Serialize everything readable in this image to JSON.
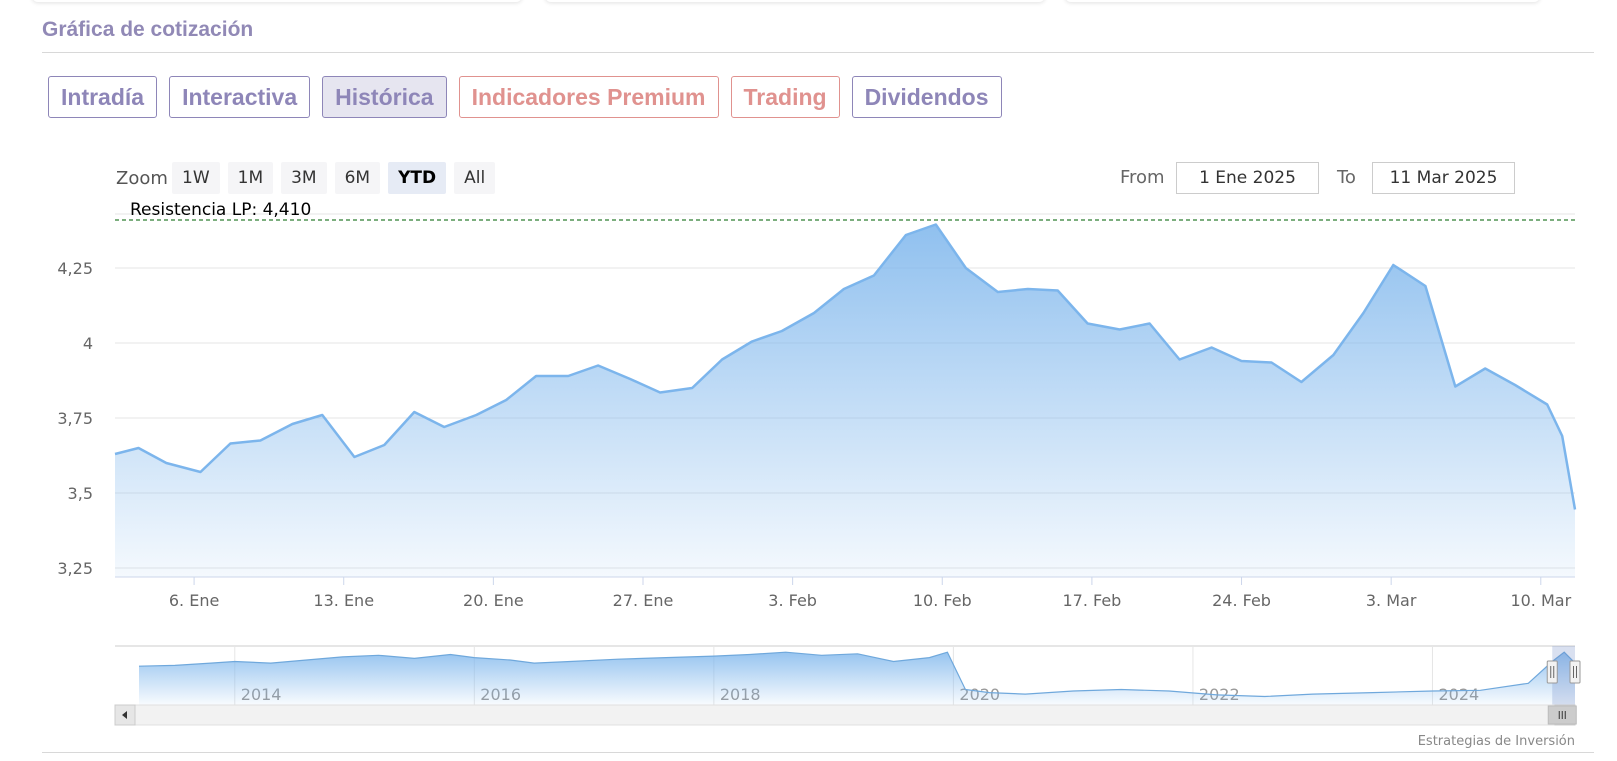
{
  "section_title": "Gráfica de cotización",
  "tabs": [
    {
      "label": "Intradía",
      "state": "normal"
    },
    {
      "label": "Interactiva",
      "state": "normal"
    },
    {
      "label": "Histórica",
      "state": "active"
    },
    {
      "label": "Indicadores Premium",
      "state": "premium"
    },
    {
      "label": "Trading",
      "state": "premium"
    },
    {
      "label": "Dividendos",
      "state": "normal"
    }
  ],
  "range_selector": {
    "zoom_label": "Zoom",
    "buttons": [
      "1W",
      "1M",
      "3M",
      "6M",
      "YTD",
      "All"
    ],
    "selected": "YTD",
    "from_label": "From",
    "from_value": "1 Ene 2025",
    "to_label": "To",
    "to_value": "11 Mar 2025"
  },
  "credits": "Estrategias de Inversión",
  "colors": {
    "accent": "#8e86b8",
    "premium": "#e0928f",
    "series_line": "#7cb5ec",
    "resistance_line": "#2e7d32"
  },
  "chart_data": {
    "type": "area",
    "y_ticks": [
      "3,25",
      "3,5",
      "3,75",
      "4",
      "4,25"
    ],
    "y_tick_values": [
      3.25,
      3.5,
      3.75,
      4.0,
      4.25
    ],
    "ylim": [
      3.22,
      4.43
    ],
    "x_ticks": [
      "6. Ene",
      "13. Ene",
      "20. Ene",
      "27. Ene",
      "3. Feb",
      "10. Feb",
      "17. Feb",
      "24. Feb",
      "3. Mar",
      "10. Mar"
    ],
    "x_tick_day_index": [
      5,
      12,
      19,
      26,
      33,
      40,
      47,
      54,
      61,
      68
    ],
    "xlim_days": [
      1.3,
      69.6
    ],
    "grid": true,
    "series": [
      {
        "points": [
          [
            1.3,
            3.63
          ],
          [
            2.4,
            3.65
          ],
          [
            3.7,
            3.6
          ],
          [
            5.3,
            3.57
          ],
          [
            6.7,
            3.665
          ],
          [
            8.1,
            3.675
          ],
          [
            9.6,
            3.73
          ],
          [
            11.0,
            3.76
          ],
          [
            12.5,
            3.62
          ],
          [
            13.9,
            3.66
          ],
          [
            15.3,
            3.77
          ],
          [
            16.7,
            3.72
          ],
          [
            18.2,
            3.76
          ],
          [
            19.6,
            3.81
          ],
          [
            21.0,
            3.89
          ],
          [
            22.5,
            3.89
          ],
          [
            23.9,
            3.925
          ],
          [
            25.4,
            3.88
          ],
          [
            26.8,
            3.835
          ],
          [
            28.3,
            3.85
          ],
          [
            29.7,
            3.945
          ],
          [
            31.1,
            4.005
          ],
          [
            32.5,
            4.04
          ],
          [
            34.0,
            4.1
          ],
          [
            35.4,
            4.18
          ],
          [
            36.8,
            4.225
          ],
          [
            38.3,
            4.36
          ],
          [
            39.7,
            4.395
          ],
          [
            41.1,
            4.25
          ],
          [
            42.6,
            4.17
          ],
          [
            44.0,
            4.18
          ],
          [
            45.4,
            4.175
          ],
          [
            46.8,
            4.065
          ],
          [
            48.3,
            4.045
          ],
          [
            49.7,
            4.065
          ],
          [
            51.1,
            3.945
          ],
          [
            52.6,
            3.985
          ],
          [
            54.0,
            3.94
          ],
          [
            55.4,
            3.935
          ],
          [
            56.8,
            3.87
          ],
          [
            58.3,
            3.96
          ],
          [
            59.7,
            4.1
          ],
          [
            61.1,
            4.26
          ],
          [
            62.6,
            4.19
          ],
          [
            64.0,
            3.855
          ],
          [
            65.4,
            3.915
          ],
          [
            66.8,
            3.86
          ],
          [
            68.3,
            3.795
          ],
          [
            69.0,
            3.69
          ],
          [
            69.6,
            3.445
          ]
        ]
      }
    ],
    "plot_lines": [
      {
        "label": "Resistencia LP: 4,410",
        "value": 4.41,
        "style": "dashed"
      }
    ],
    "navigator": {
      "x_ticks": [
        "2014",
        "2016",
        "2018",
        "2020",
        "2022",
        "2024"
      ],
      "x_tick_years": [
        2014,
        2016,
        2018,
        2020,
        2022,
        2024
      ],
      "xlim_years": [
        2013.0,
        2025.19
      ],
      "ylim": [
        0.8,
        4.6
      ],
      "selected_range_years": [
        2025.0,
        2025.19
      ],
      "points": [
        [
          2013.2,
          3.3
        ],
        [
          2013.5,
          3.35
        ],
        [
          2013.8,
          3.5
        ],
        [
          2014.0,
          3.6
        ],
        [
          2014.3,
          3.5
        ],
        [
          2014.6,
          3.7
        ],
        [
          2014.9,
          3.9
        ],
        [
          2015.2,
          4.0
        ],
        [
          2015.5,
          3.8
        ],
        [
          2015.8,
          4.05
        ],
        [
          2016.0,
          3.85
        ],
        [
          2016.3,
          3.7
        ],
        [
          2016.5,
          3.5
        ],
        [
          2016.8,
          3.6
        ],
        [
          2017.2,
          3.75
        ],
        [
          2017.6,
          3.85
        ],
        [
          2018.0,
          3.95
        ],
        [
          2018.3,
          4.05
        ],
        [
          2018.6,
          4.2
        ],
        [
          2018.9,
          4.0
        ],
        [
          2019.2,
          4.1
        ],
        [
          2019.5,
          3.6
        ],
        [
          2019.8,
          3.85
        ],
        [
          2019.95,
          4.2
        ],
        [
          2020.1,
          1.8
        ],
        [
          2020.3,
          1.6
        ],
        [
          2020.6,
          1.5
        ],
        [
          2021.0,
          1.7
        ],
        [
          2021.4,
          1.8
        ],
        [
          2021.8,
          1.7
        ],
        [
          2022.2,
          1.45
        ],
        [
          2022.6,
          1.35
        ],
        [
          2023.0,
          1.5
        ],
        [
          2023.5,
          1.6
        ],
        [
          2024.0,
          1.7
        ],
        [
          2024.4,
          1.75
        ],
        [
          2024.8,
          2.2
        ],
        [
          2025.0,
          3.6
        ],
        [
          2025.1,
          4.2
        ],
        [
          2025.19,
          3.5
        ]
      ]
    }
  }
}
